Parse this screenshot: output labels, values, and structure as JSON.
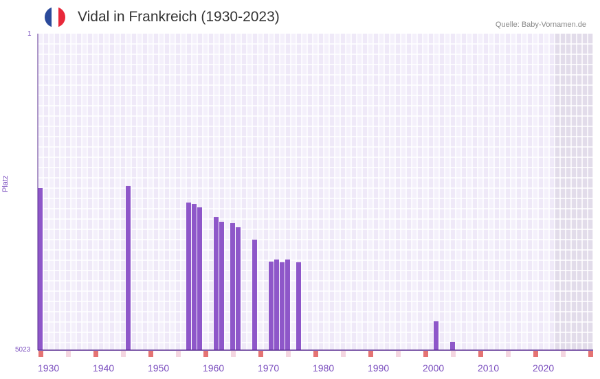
{
  "header": {
    "title": "Vidal in Frankreich (1930-2023)",
    "source": "Quelle: Baby-Vornamen.de",
    "flag": "france-flag"
  },
  "chart_data": {
    "type": "bar",
    "title": "Vidal in Frankreich (1930-2023)",
    "xlabel": "",
    "ylabel": "Platz",
    "y_tick_labels": [
      "1",
      "5023"
    ],
    "ylim": [
      1,
      5023
    ],
    "y_inverted": true,
    "xlim": [
      1930,
      2030
    ],
    "x_tick_labels": [
      "1930",
      "1940",
      "1950",
      "1960",
      "1970",
      "1980",
      "1990",
      "2000",
      "2010",
      "2020"
    ],
    "future_shaded_from": 2024,
    "bar_color": "#8e57c9",
    "points": [
      {
        "year": 1930,
        "rank": 2452
      },
      {
        "year": 1946,
        "rank": 2419
      },
      {
        "year": 1957,
        "rank": 2681
      },
      {
        "year": 1958,
        "rank": 2703
      },
      {
        "year": 1959,
        "rank": 2757
      },
      {
        "year": 1962,
        "rank": 2910
      },
      {
        "year": 1963,
        "rank": 2986
      },
      {
        "year": 1965,
        "rank": 3008
      },
      {
        "year": 1966,
        "rank": 3073
      },
      {
        "year": 1969,
        "rank": 3269
      },
      {
        "year": 1972,
        "rank": 3618
      },
      {
        "year": 1973,
        "rank": 3585
      },
      {
        "year": 1974,
        "rank": 3629
      },
      {
        "year": 1975,
        "rank": 3585
      },
      {
        "year": 1977,
        "rank": 3629
      },
      {
        "year": 2002,
        "rank": 4565
      },
      {
        "year": 2005,
        "rank": 4892
      }
    ]
  }
}
